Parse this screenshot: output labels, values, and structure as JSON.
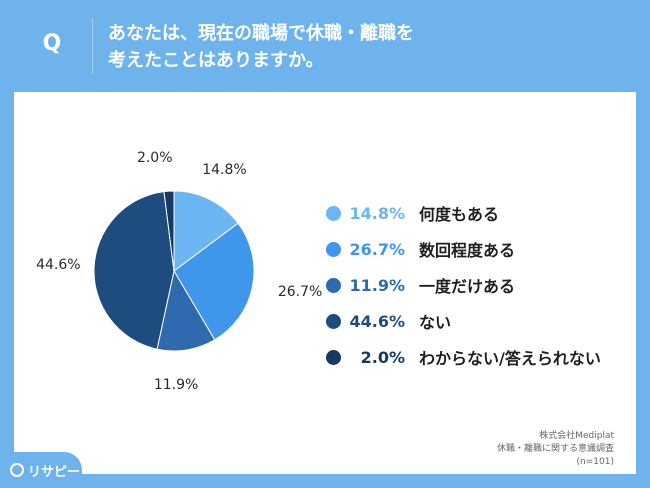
{
  "header": {
    "q_mark": "Q",
    "question_line1": "あなたは、現在の職場で休職・離職を",
    "question_line2": "考えたことはありますか。"
  },
  "chart_data": {
    "type": "pie",
    "title": "",
    "slices": [
      {
        "label": "何度もある",
        "value": 14.8,
        "display": "14.8%",
        "color": "#6bb6f2"
      },
      {
        "label": "数回程度ある",
        "value": 26.7,
        "display": "26.7%",
        "color": "#3f97ec"
      },
      {
        "label": "一度だけある",
        "value": 11.9,
        "display": "11.9%",
        "color": "#2e6aad"
      },
      {
        "label": "ない",
        "value": 44.6,
        "display": "44.6%",
        "color": "#1f4c7f"
      },
      {
        "label": "わからない/答えられない",
        "value": 2.0,
        "display": "2.0%",
        "color": "#153a63"
      }
    ],
    "legend_placement": "right"
  },
  "source": {
    "line1": "株式会社Mediplat",
    "line2": "休職・離職に関する意識調査",
    "line3": "(n=101)"
  },
  "logo": {
    "text": "リサピー",
    "color": "#6fb3ec"
  },
  "colors": {
    "background": "#6fb3ec",
    "card": "#ffffff",
    "pie_stroke": "#ffffff"
  }
}
